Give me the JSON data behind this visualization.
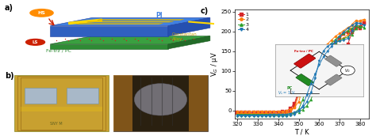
{
  "xlabel": "T / K",
  "ylabel": "V$_G$ / μV",
  "xlim": [
    319,
    384
  ],
  "ylim": [
    -20,
    255
  ],
  "yticks": [
    0,
    50,
    100,
    150,
    200,
    250
  ],
  "xticks": [
    320,
    330,
    340,
    350,
    360,
    370,
    380
  ],
  "legend_labels": [
    "1",
    "2",
    "3",
    "4"
  ],
  "line_colors": [
    "#d62728",
    "#ff7f0e",
    "#2ca02c",
    "#1f77b4"
  ],
  "markers": [
    "s",
    "o",
    "^",
    "v"
  ],
  "series": {
    "1_heat": {
      "T": [
        320,
        322,
        324,
        326,
        328,
        330,
        332,
        334,
        336,
        338,
        340,
        342,
        344,
        346,
        348,
        350,
        352,
        354,
        356,
        358,
        360,
        362,
        364,
        366,
        368,
        370,
        372,
        374,
        376,
        378,
        380,
        382
      ],
      "V": [
        -5,
        -5,
        -5,
        -5,
        -5,
        -5,
        -5,
        -5,
        -5,
        -4,
        -4,
        -3,
        -2,
        5,
        18,
        50,
        90,
        110,
        118,
        128,
        138,
        146,
        153,
        156,
        158,
        160,
        163,
        168,
        198,
        212,
        208,
        222
      ]
    },
    "1_cool": {
      "T": [
        382,
        380,
        378,
        376,
        374,
        372,
        370,
        368,
        366,
        364,
        362,
        360,
        358,
        356,
        354,
        352,
        350,
        348,
        346,
        344,
        342,
        340,
        338,
        336,
        334,
        332,
        330,
        328,
        326,
        324,
        322,
        320
      ],
      "V": [
        222,
        212,
        208,
        203,
        198,
        194,
        183,
        172,
        165,
        160,
        155,
        150,
        145,
        138,
        128,
        98,
        48,
        12,
        -2,
        -5,
        -6,
        -7,
        -7,
        -7,
        -7,
        -7,
        -7,
        -7,
        -7,
        -7,
        -7,
        -7
      ]
    },
    "2_heat": {
      "T": [
        320,
        322,
        324,
        326,
        328,
        330,
        332,
        334,
        336,
        338,
        340,
        342,
        344,
        346,
        348,
        350,
        352,
        354,
        356,
        358,
        360,
        362,
        364,
        366,
        368,
        370,
        372,
        374,
        376,
        378,
        380,
        382
      ],
      "V": [
        -3,
        -3,
        -3,
        -3,
        -2,
        -2,
        -2,
        -2,
        -2,
        -2,
        -2,
        -2,
        -1,
        3,
        8,
        22,
        55,
        90,
        112,
        128,
        142,
        152,
        160,
        165,
        172,
        178,
        183,
        192,
        218,
        228,
        225,
        230
      ]
    },
    "2_cool": {
      "T": [
        382,
        380,
        378,
        376,
        374,
        372,
        370,
        368,
        366,
        364,
        362,
        360,
        358,
        356,
        354,
        352,
        350,
        348,
        346,
        344,
        342,
        340,
        338,
        336,
        334,
        332,
        330,
        328,
        326,
        324,
        322,
        320
      ],
      "V": [
        230,
        228,
        222,
        215,
        210,
        202,
        195,
        188,
        178,
        168,
        162,
        152,
        142,
        130,
        112,
        82,
        38,
        8,
        -4,
        -6,
        -7,
        -8,
        -8,
        -8,
        -8,
        -8,
        -8,
        -8,
        -8,
        -8,
        -8,
        -8
      ]
    },
    "3_heat": {
      "T": [
        320,
        322,
        324,
        326,
        328,
        330,
        332,
        334,
        336,
        338,
        340,
        342,
        344,
        346,
        348,
        350,
        352,
        354,
        356,
        358,
        360,
        362,
        364,
        366,
        368,
        370,
        372,
        374,
        376,
        378,
        380,
        382
      ],
      "V": [
        -10,
        -10,
        -10,
        -10,
        -10,
        -10,
        -10,
        -10,
        -10,
        -10,
        -10,
        -10,
        -10,
        -8,
        -6,
        -4,
        2,
        12,
        28,
        55,
        95,
        135,
        155,
        165,
        172,
        178,
        182,
        186,
        192,
        208,
        212,
        210
      ]
    },
    "3_cool": {
      "T": [
        382,
        380,
        378,
        376,
        374,
        372,
        370,
        368,
        366,
        364,
        362,
        360,
        358,
        356,
        354,
        352,
        350,
        348,
        346,
        344,
        342,
        340,
        338,
        336,
        334,
        332,
        330,
        328,
        326,
        324,
        322,
        320
      ],
      "V": [
        210,
        212,
        215,
        208,
        202,
        195,
        188,
        180,
        170,
        158,
        145,
        132,
        112,
        88,
        58,
        28,
        3,
        -7,
        -10,
        -12,
        -12,
        -12,
        -12,
        -12,
        -12,
        -12,
        -12,
        -12,
        -12,
        -12,
        -12,
        -12
      ]
    },
    "4_heat": {
      "T": [
        320,
        322,
        324,
        326,
        328,
        330,
        332,
        334,
        336,
        338,
        340,
        342,
        344,
        346,
        348,
        350,
        352,
        354,
        356,
        358,
        360,
        362,
        364,
        366,
        368,
        370,
        372,
        374,
        376,
        378,
        380,
        382
      ],
      "V": [
        -12,
        -12,
        -12,
        -12,
        -12,
        -12,
        -12,
        -12,
        -11,
        -10,
        -10,
        -10,
        -10,
        -8,
        -5,
        0,
        8,
        22,
        45,
        82,
        125,
        150,
        162,
        168,
        172,
        175,
        178,
        182,
        202,
        218,
        220,
        215
      ]
    },
    "4_cool": {
      "T": [
        382,
        380,
        378,
        376,
        374,
        372,
        370,
        368,
        366,
        364,
        362,
        360,
        358,
        356,
        354,
        352,
        350,
        348,
        346,
        344,
        342,
        340,
        338,
        336,
        334,
        332,
        330,
        328,
        326,
        324,
        322,
        320
      ],
      "V": [
        215,
        220,
        222,
        215,
        208,
        198,
        188,
        175,
        162,
        150,
        135,
        115,
        92,
        68,
        40,
        12,
        -2,
        -10,
        -12,
        -14,
        -14,
        -14,
        -14,
        -14,
        -14,
        -14,
        -14,
        -14,
        -14,
        -14,
        -14,
        -14
      ]
    }
  },
  "bg_color": "#f2ede8",
  "panel_a_label": "a)",
  "panel_b_label": "b)",
  "panel_c_label": "c)"
}
